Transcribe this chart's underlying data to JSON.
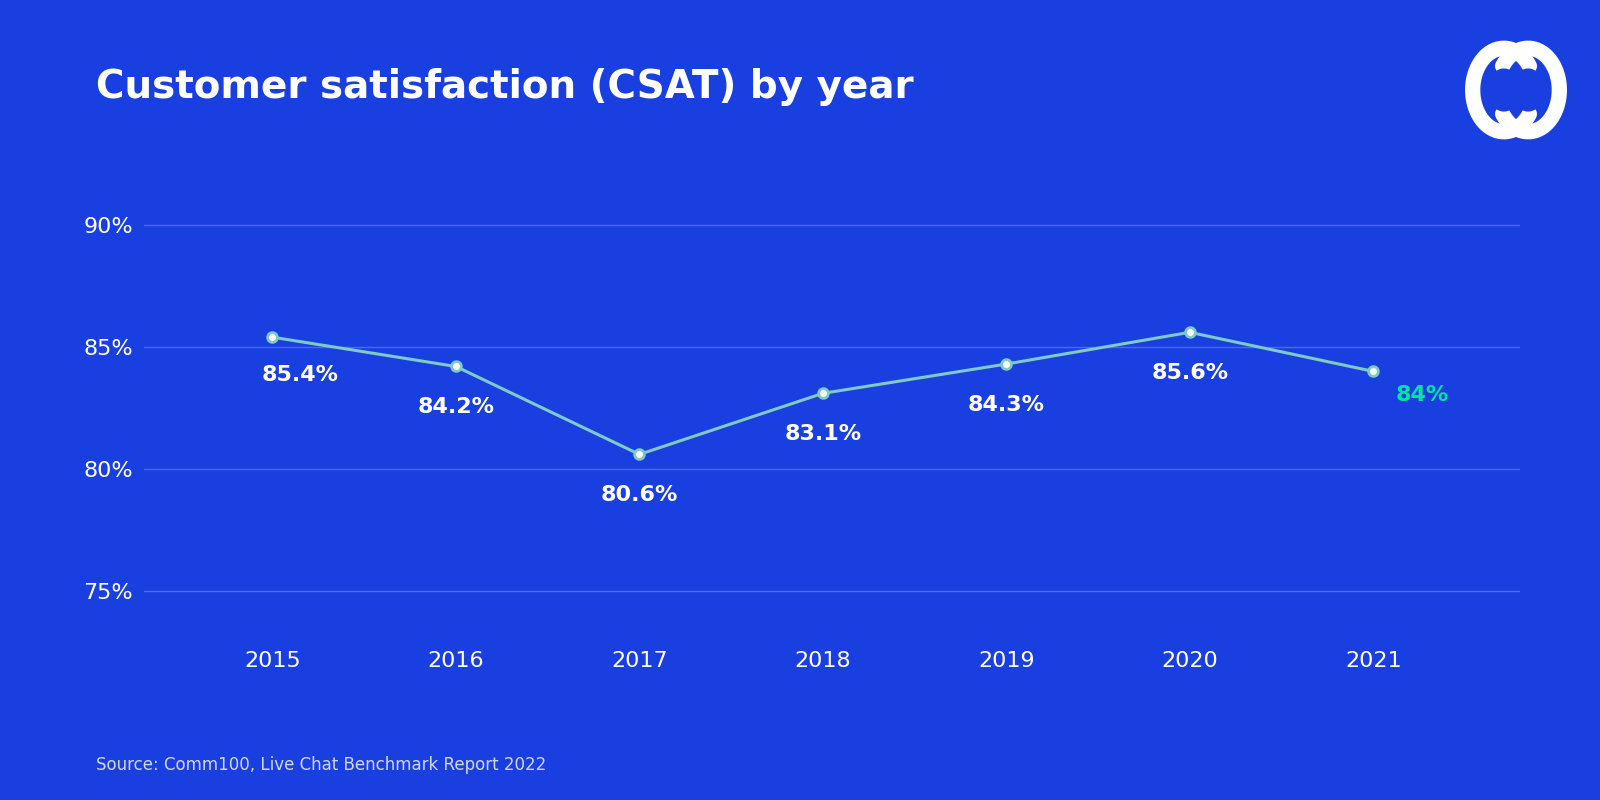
{
  "title": "Customer satisfaction (CSAT) by year",
  "years": [
    2015,
    2016,
    2017,
    2018,
    2019,
    2020,
    2021
  ],
  "values": [
    85.4,
    84.2,
    80.6,
    83.1,
    84.3,
    85.6,
    84.0
  ],
  "labels": [
    "85.4%",
    "84.2%",
    "80.6%",
    "83.1%",
    "84.3%",
    "85.6%",
    "84%"
  ],
  "last_label_color": "#00e5a0",
  "default_label_color": "#ffffff",
  "line_color": "#7ecac8",
  "marker_color": "#ffffff",
  "marker_edge_color": "#7ecac8",
  "background_color": "#1a3fe0",
  "text_color": "#ffffff",
  "grid_color": "#4a6ae8",
  "yticks": [
    75,
    80,
    85,
    90
  ],
  "ytick_labels": [
    "75%",
    "80%",
    "85%",
    "90%"
  ],
  "ylim": [
    73,
    92
  ],
  "source_text": "Source: Comm100, Live Chat Benchmark Report 2022",
  "title_fontsize": 28,
  "label_fontsize": 16,
  "tick_fontsize": 16,
  "source_fontsize": 12
}
